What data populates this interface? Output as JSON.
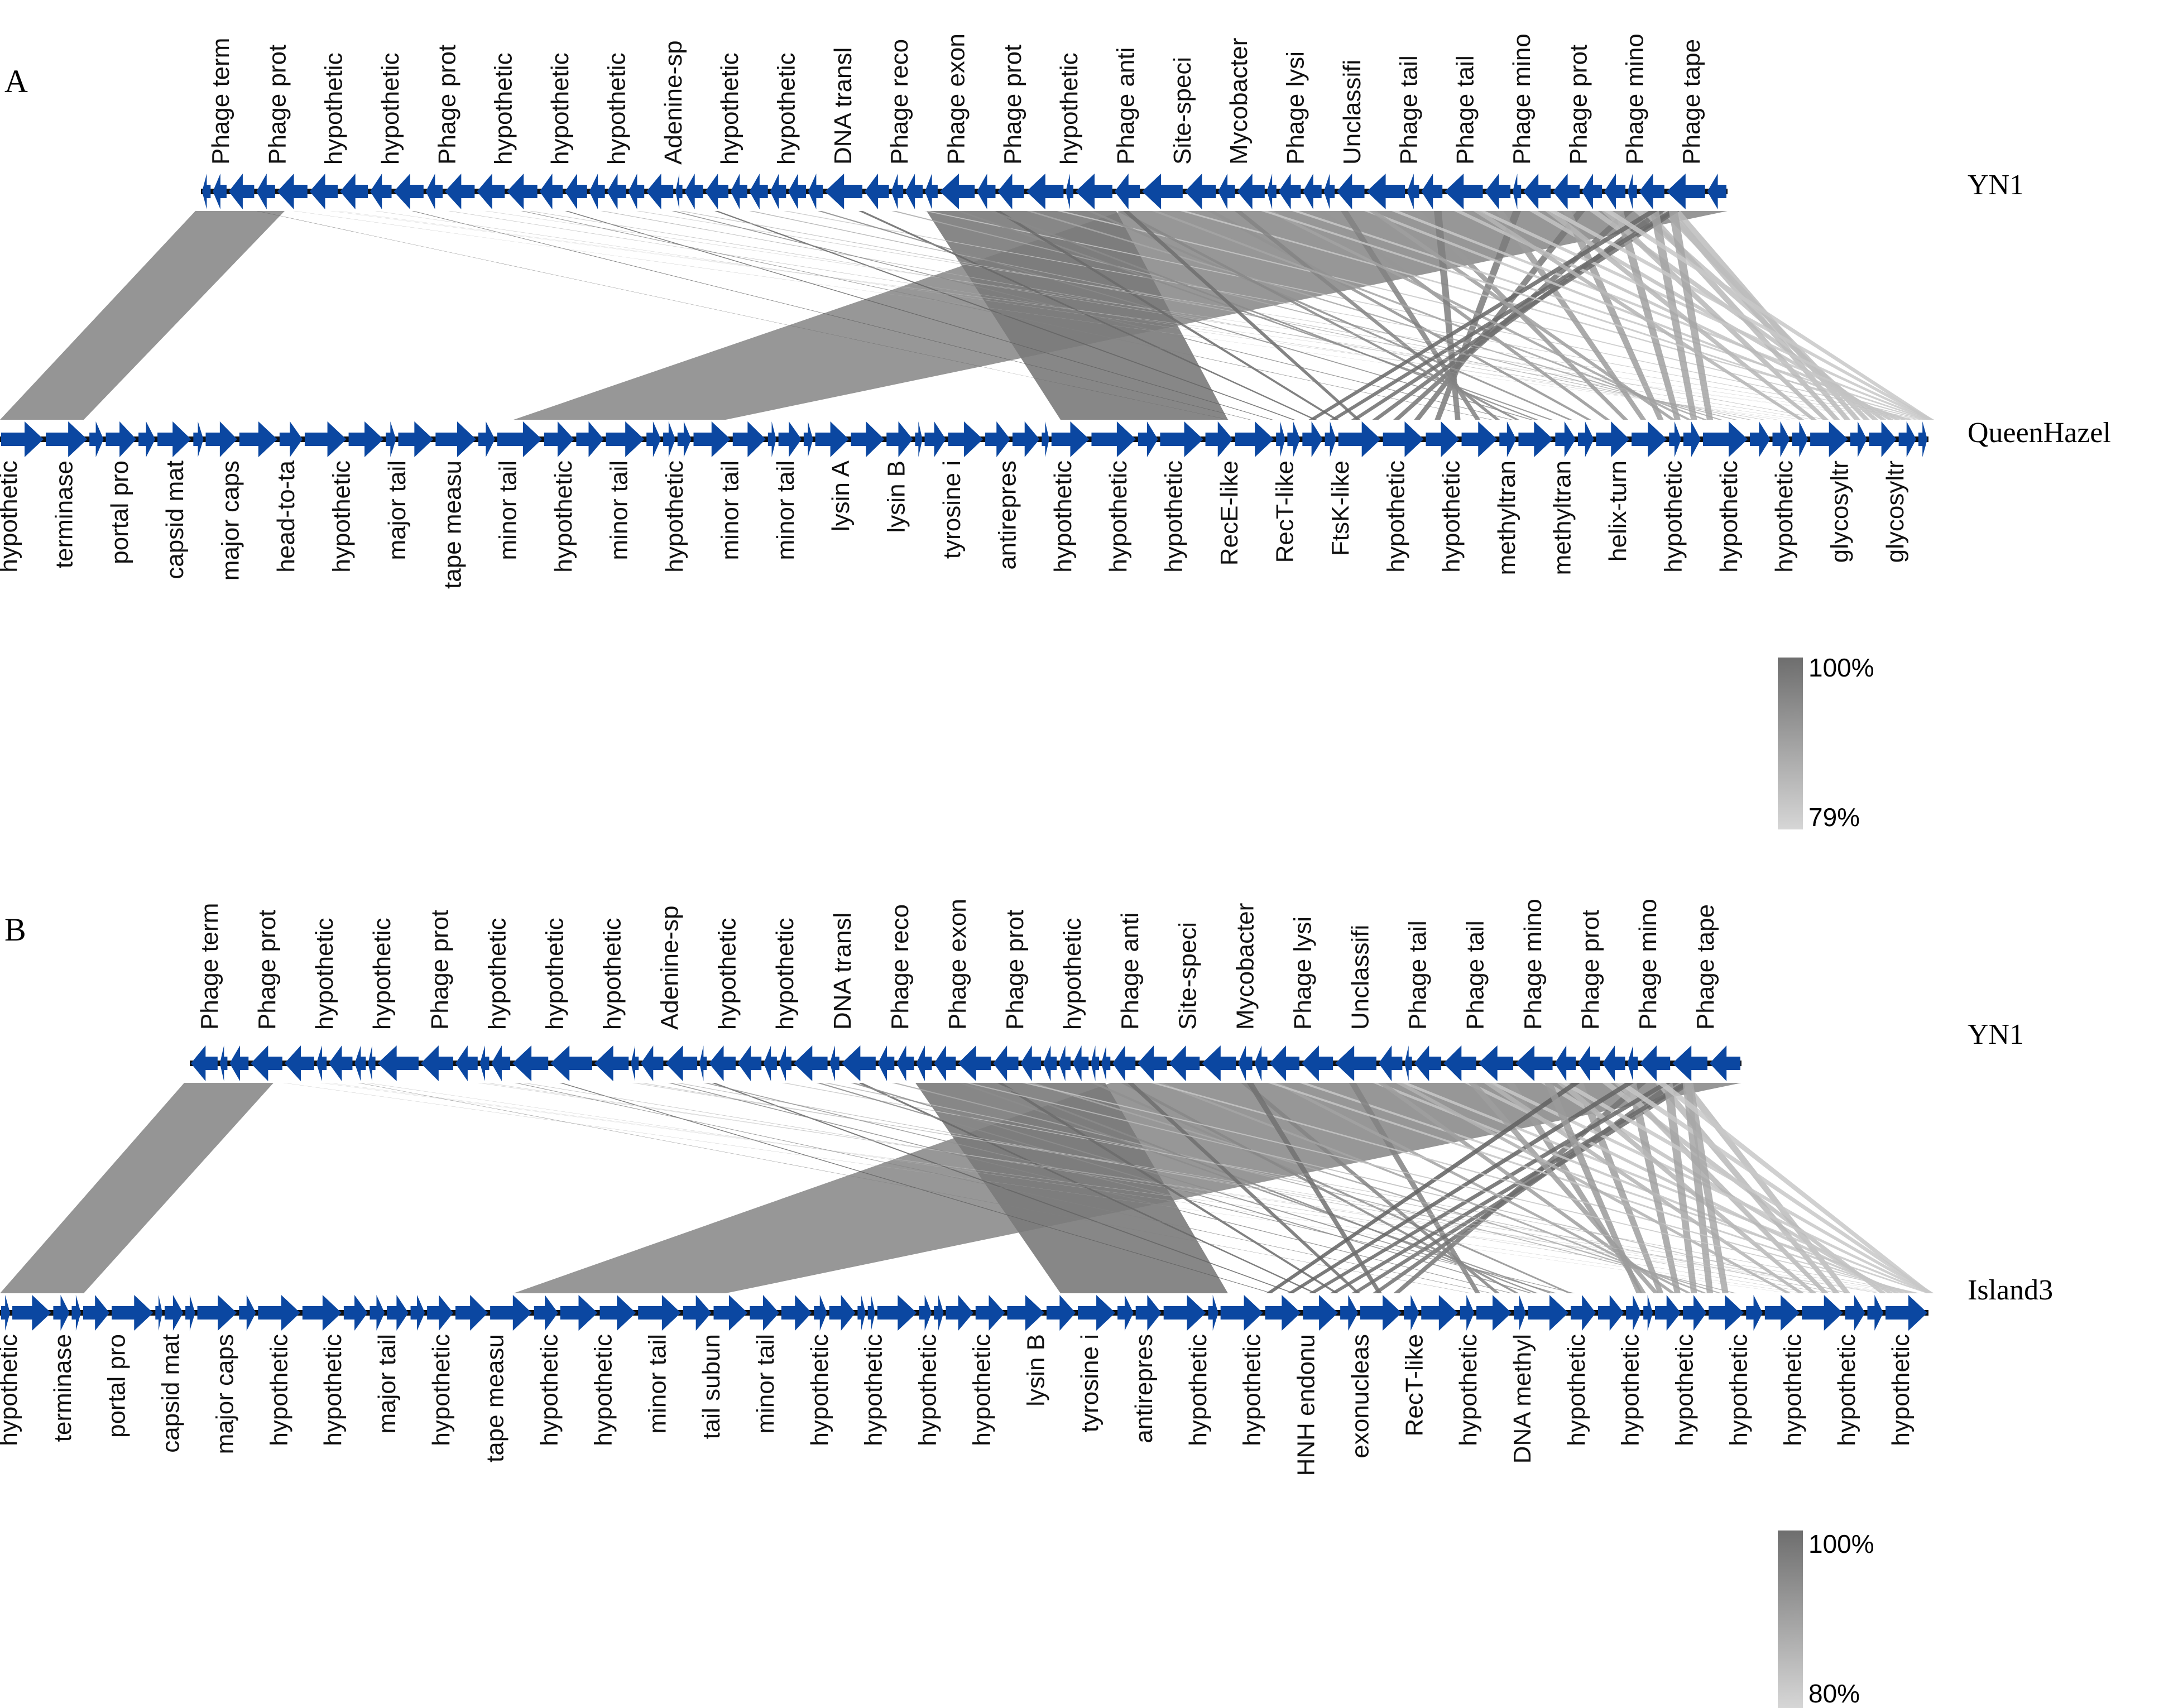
{
  "colors": {
    "gene": "#0b47a1",
    "backbone": "#111111",
    "similarity_high": "#6e6e6e",
    "similarity_low": "#d6d6d6",
    "text": "#111111"
  },
  "panels": [
    {
      "panel_label": "A",
      "top_genome": {
        "name": "YN1",
        "gene_labels": [
          "Phage term",
          "Phage prot",
          "hypothetic",
          "hypothetic",
          "Phage prot",
          "hypothetic",
          "hypothetic",
          "hypothetic",
          "Adenine-sp",
          "hypothetic",
          "hypothetic",
          "DNA transl",
          "Phage reco",
          "Phage exon",
          "Phage prot",
          "hypothetic",
          "Phage anti",
          "Site-speci",
          "Mycobacter",
          "Phage lysi",
          "Unclassifi",
          "Phage tail",
          "Phage tail",
          "Phage mino",
          "Phage prot",
          "Phage mino",
          "Phage tape"
        ]
      },
      "bottom_genome": {
        "name": "QueenHazel",
        "gene_labels": [
          "hypothetic",
          "terminase",
          "portal pro",
          "capsid mat",
          "major caps",
          "head-to-ta",
          "hypothetic",
          "major tail",
          "tape measu",
          "minor tail",
          "hypothetic",
          "minor tail",
          "hypothetic",
          "minor tail",
          "minor tail",
          "lysin A",
          "lysin B",
          "tyrosine i",
          "antirepres",
          "hypothetic",
          "hypothetic",
          "hypothetic",
          "RecE-like",
          "RecT-like",
          "FtsK-like",
          "hypothetic",
          "hypothetic",
          "methyltran",
          "methyltran",
          "helix-turn",
          "hypothetic",
          "hypothetic",
          "hypothetic",
          "glycosyltr",
          "glycosyltr"
        ]
      },
      "identity_scale": {
        "max_label": "100%",
        "min_label": "79%"
      }
    },
    {
      "panel_label": "B",
      "top_genome": {
        "name": "YN1",
        "gene_labels": [
          "Phage term",
          "Phage prot",
          "hypothetic",
          "hypothetic",
          "Phage prot",
          "hypothetic",
          "hypothetic",
          "hypothetic",
          "Adenine-sp",
          "hypothetic",
          "hypothetic",
          "DNA transl",
          "Phage reco",
          "Phage exon",
          "Phage prot",
          "hypothetic",
          "Phage anti",
          "Site-speci",
          "Mycobacter",
          "Phage lysi",
          "Unclassifi",
          "Phage tail",
          "Phage tail",
          "Phage mino",
          "Phage prot",
          "Phage mino",
          "Phage tape"
        ]
      },
      "bottom_genome": {
        "name": "Island3",
        "gene_labels": [
          "hypothetic",
          "terminase",
          "portal pro",
          "capsid mat",
          "major caps",
          "hypothetic",
          "hypothetic",
          "major tail",
          "hypothetic",
          "tape measu",
          "hypothetic",
          "hypothetic",
          "minor tail",
          "tail subun",
          "minor tail",
          "hypothetic",
          "hypothetic",
          "hypothetic",
          "hypothetic",
          "lysin B",
          "tyrosine i",
          "antirepres",
          "hypothetic",
          "hypothetic",
          "HNH endonu",
          "exonucleas",
          "RecT-like",
          "hypothetic",
          "DNA methyl",
          "hypothetic",
          "hypothetic",
          "hypothetic",
          "hypothetic",
          "hypothetic",
          "hypothetic",
          "hypothetic"
        ]
      },
      "identity_scale": {
        "max_label": "100%",
        "min_label": "80%"
      }
    }
  ]
}
